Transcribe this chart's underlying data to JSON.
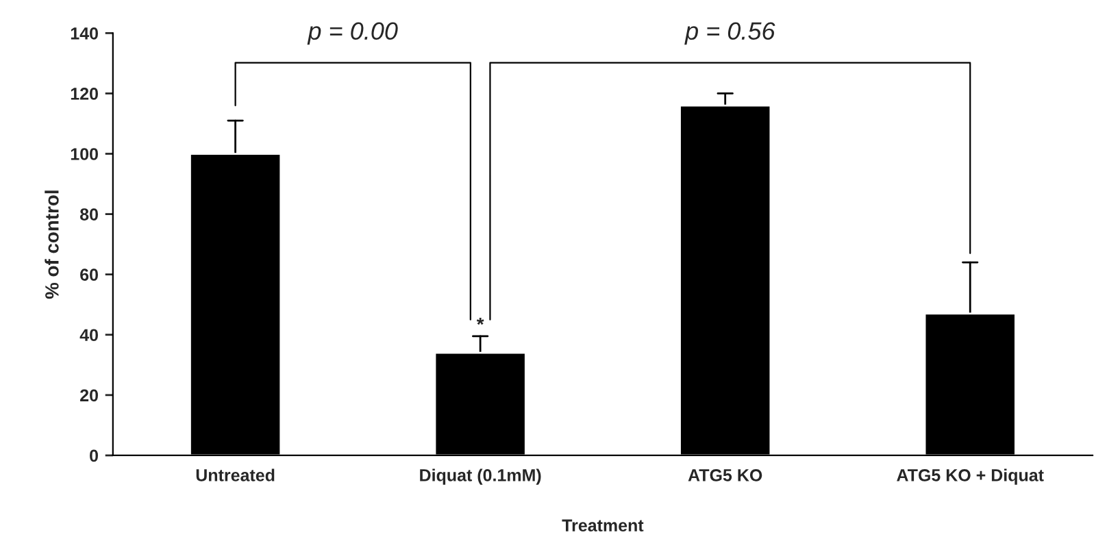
{
  "chart_data": {
    "type": "bar",
    "xlabel": "Treatment",
    "ylabel": "% of control",
    "categories": [
      "Untreated",
      "Diquat (0.1mM)",
      "ATG5 KO",
      "ATG5 KO + Diquat"
    ],
    "values": [
      100,
      34,
      116,
      47
    ],
    "color": "#000000",
    "errors": [
      [
        100,
        111
      ],
      [
        34,
        39.5
      ],
      [
        116,
        120
      ],
      [
        47,
        64
      ]
    ],
    "ylim": [
      0,
      140
    ],
    "yticks": [
      0,
      20,
      40,
      60,
      80,
      100,
      120,
      140
    ],
    "grid": false,
    "annotations": [
      "p = 0.00",
      "p = 0.56",
      {
        "text": "*",
        "x": "Diquat (0.1mM)",
        "y": 40
      }
    ]
  }
}
